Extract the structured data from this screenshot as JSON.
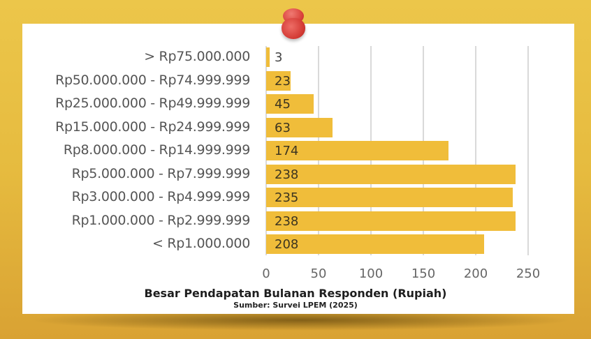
{
  "chart_data": {
    "type": "bar",
    "orientation": "horizontal",
    "title": "Besar Pendapatan Bulanan Responden (Rupiah)",
    "subtitle": "Sumber: Survei LPEM (2025)",
    "xlabel": "",
    "ylabel": "",
    "xlim": [
      0,
      250
    ],
    "x_ticks": [
      "0",
      "50",
      "100",
      "150",
      "200",
      "250"
    ],
    "grid": true,
    "legend": "none",
    "categories": [
      "> Rp75.000.000",
      "Rp50.000.000 - Rp74.999.999",
      "Rp25.000.000 - Rp49.999.999",
      "Rp15.000.000 - Rp24.999.999",
      "Rp8.000.000 - Rp14.999.999",
      "Rp5.000.000 - Rp7.999.999",
      "Rp3.000.000 - Rp4.999.999",
      "Rp1.000.000 - Rp2.999.999",
      "< Rp1.000.000"
    ],
    "values": [
      3,
      23,
      45,
      63,
      174,
      238,
      235,
      238,
      208
    ],
    "colors": {
      "bar": "#f0bd3a",
      "grid": "#d9d9d9",
      "background": "#e8bf44",
      "pin": "#d9403a"
    }
  },
  "labels": {
    "cat0": "> Rp75.000.000",
    "cat1": "Rp50.000.000 - Rp74.999.999",
    "cat2": "Rp25.000.000 - Rp49.999.999",
    "cat3": "Rp15.000.000 - Rp24.999.999",
    "cat4": "Rp8.000.000 - Rp14.999.999",
    "cat5": "Rp5.000.000 - Rp7.999.999",
    "cat6": "Rp3.000.000 - Rp4.999.999",
    "cat7": "Rp1.000.000 - Rp2.999.999",
    "cat8": "< Rp1.000.000",
    "val0": "3",
    "val1": "23",
    "val2": "45",
    "val3": "63",
    "val4": "174",
    "val5": "238",
    "val6": "235",
    "val7": "238",
    "val8": "208",
    "t0": "0",
    "t1": "50",
    "t2": "100",
    "t3": "150",
    "t4": "200",
    "t5": "250"
  }
}
